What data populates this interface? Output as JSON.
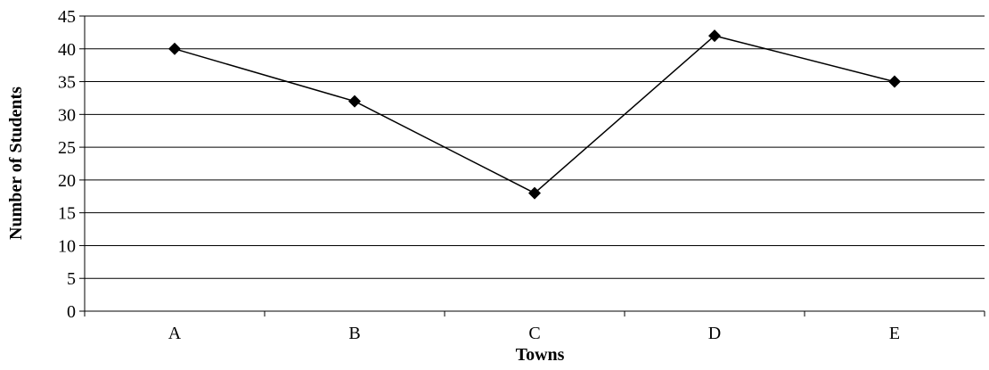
{
  "chart_data": {
    "type": "line",
    "title": "",
    "xlabel": "Towns",
    "ylabel": "Number of Students",
    "categories": [
      "A",
      "B",
      "C",
      "D",
      "E"
    ],
    "series": [
      {
        "values": [
          40,
          32,
          18,
          42,
          35
        ]
      }
    ],
    "ylim": [
      0,
      45
    ],
    "yticks": [
      0,
      5,
      10,
      15,
      20,
      25,
      30,
      35,
      40,
      45
    ],
    "grid": "horizontal",
    "marker": "diamond",
    "colors": {
      "line": "#000000",
      "marker": "#000000",
      "grid": "#000000",
      "axis": "#000000"
    }
  }
}
